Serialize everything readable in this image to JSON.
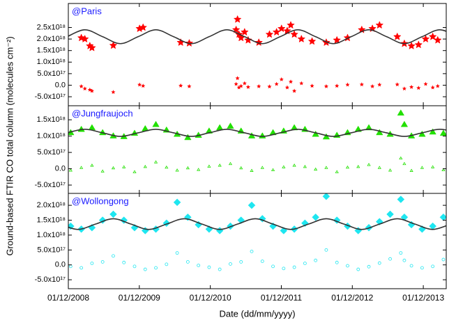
{
  "chart_data": [
    {
      "type": "scatter",
      "label": "@Paris",
      "ylabel": "Ground-based FTIR CO total column (molecules cm⁻²)",
      "ylim": [
        -8.9e+17,
        3.54e+18
      ],
      "yticks": [
        {
          "value": -5e+17,
          "label": "-5.0x10¹⁷"
        },
        {
          "value": 0,
          "label": "0.0"
        },
        {
          "value": 5e+17,
          "label": "5.0x10¹⁷"
        },
        {
          "value": 1e+18,
          "label": "1.0x10¹⁸"
        },
        {
          "value": 1.5e+18,
          "label": "1.5x10¹⁸"
        },
        {
          "value": 2e+18,
          "label": "2.0x10¹⁸"
        },
        {
          "value": 2.5e+18,
          "label": "2.5x10¹⁸"
        }
      ],
      "x": [
        2009.1,
        2009.15,
        2009.22,
        2009.25,
        2009.55,
        2009.92,
        2009.97,
        2010.5,
        2010.62,
        2011.28,
        2011.3,
        2011.32,
        2011.35,
        2011.4,
        2011.45,
        2011.6,
        2011.75,
        2011.85,
        2011.92,
        2012.0,
        2012.05,
        2012.1,
        2012.2,
        2012.35,
        2012.55,
        2012.7,
        2012.85,
        2013.05,
        2013.2,
        2013.3,
        2013.55,
        2013.65,
        2013.75,
        2013.85,
        2013.95,
        2014.05,
        2014.12
      ],
      "series": [
        {
          "color": "#ff0000",
          "marker": "star",
          "values": [
            2.05e+18,
            2e+18,
            1.7e+18,
            1.62e+18,
            1.72e+18,
            2.45e+18,
            2.5e+18,
            1.85e+18,
            1.82e+18,
            2.4e+18,
            2.85e+18,
            2.2e+18,
            2.05e+18,
            2.3e+18,
            1.95e+18,
            1.85e+18,
            2.2e+18,
            2.3e+18,
            2.45e+18,
            2.35e+18,
            2.6e+18,
            2.2e+18,
            2e+18,
            1.9e+18,
            1.85e+18,
            1.95e+18,
            2.05e+18,
            2.4e+18,
            2.45e+18,
            2.6e+18,
            2.1e+18,
            1.8e+18,
            1.7e+18,
            1.75e+18,
            2e+18,
            2.1e+18,
            1.95e+18
          ]
        },
        {
          "color": "#ff0000",
          "marker": "star",
          "values": [
            -5e+16,
            -1.5e+17,
            -2e+17,
            -2.5e+17,
            -3e+17,
            2e+16,
            -3e+16,
            -2e+16,
            -5e+16,
            5e+16,
            3e+17,
            -1e+17,
            -4e+16,
            8e+16,
            -8e+16,
            -5e+16,
            -6e+16,
            5e+16,
            2.5e+17,
            -1e+17,
            1.5e+17,
            -2.5e+17,
            8e+16,
            -3e+16,
            -5e+16,
            -3e+16,
            2e+16,
            3e+16,
            -5e+16,
            2e+16,
            3e+16,
            -1.5e+17,
            -8e+16,
            -1.2e+17,
            5e+16,
            -1e+17,
            -4e+16
          ]
        }
      ],
      "fit": {
        "color": "#333333",
        "x": [
          2008.9,
          2009.15,
          2009.4,
          2009.65,
          2009.9,
          2010.15,
          2010.4,
          2010.65,
          2010.9,
          2011.15,
          2011.4,
          2011.65,
          2011.9,
          2012.15,
          2012.4,
          2012.65,
          2012.9,
          2013.15,
          2013.4,
          2013.65,
          2013.9,
          2014.15,
          2014.4
        ],
        "values": [
          2.1e+18,
          2.4e+18,
          2.1e+18,
          1.8e+18,
          2.1e+18,
          2.4e+18,
          2.1e+18,
          1.8e+18,
          2.1e+18,
          2.4e+18,
          2.1e+18,
          1.8e+18,
          2.1e+18,
          2.4e+18,
          2.1e+18,
          1.8e+18,
          2.1e+18,
          2.4e+18,
          2.1e+18,
          1.8e+18,
          2.1e+18,
          2.4e+18,
          2.1e+18
        ]
      }
    },
    {
      "type": "scatter",
      "label": "@Jungfraujoch",
      "ylim": [
        -7.55e+17,
        1.93e+18
      ],
      "yticks": [
        {
          "value": -5e+17,
          "label": "-5.0x10¹⁷"
        },
        {
          "value": 0,
          "label": "0.0"
        },
        {
          "value": 5e+17,
          "label": "5.0x10¹⁷"
        },
        {
          "value": 1e+18,
          "label": "1.0x10¹⁸"
        },
        {
          "value": 1.5e+18,
          "label": "1.5x10¹⁸"
        }
      ],
      "x": [
        2008.95,
        2009.1,
        2009.25,
        2009.4,
        2009.55,
        2009.7,
        2009.85,
        2010.0,
        2010.15,
        2010.3,
        2010.45,
        2010.6,
        2010.75,
        2010.9,
        2011.05,
        2011.2,
        2011.35,
        2011.5,
        2011.65,
        2011.8,
        2011.95,
        2012.1,
        2012.25,
        2012.4,
        2012.55,
        2012.7,
        2012.85,
        2013.0,
        2013.15,
        2013.3,
        2013.45,
        2013.6,
        2013.65,
        2013.75,
        2013.9,
        2014.05,
        2014.2
      ],
      "series": [
        {
          "color": "#22e000",
          "marker": "triangle",
          "values": [
            1.1e+18,
            1.2e+18,
            1.25e+18,
            1.1e+18,
            1e+18,
            9.8e+17,
            1.08e+18,
            1.22e+18,
            1.35e+18,
            1.18e+18,
            1.05e+18,
            9.5e+17,
            1.02e+18,
            1.15e+18,
            1.25e+18,
            1.3e+18,
            1.15e+18,
            1e+18,
            1e+18,
            1.1e+18,
            1.15e+18,
            1.25e+18,
            1.2e+18,
            1.05e+18,
            9.7e+17,
            1.02e+18,
            1.1e+18,
            1.2e+18,
            1.25e+18,
            1.1e+18,
            1.05e+18,
            1.7e+18,
            1.35e+18,
            1e+18,
            1.05e+18,
            1.12e+18,
            1.08e+18
          ]
        },
        {
          "color": "#22e000",
          "marker": "triangle",
          "values": [
            -5e+16,
            3e+16,
            1e+17,
            -8e+16,
            2e+16,
            5e+16,
            -1e+17,
            6e+16,
            2e+17,
            4e+16,
            -5e+16,
            2e+16,
            -3e+16,
            7e+16,
            1e+17,
            1.5e+17,
            2e+16,
            -6e+16,
            3e+16,
            -4e+16,
            5e+16,
            1e+17,
            6e+16,
            -2e+16,
            3e+16,
            -1e+17,
            4e+16,
            6e+16,
            1.2e+17,
            3e+16,
            -5e+16,
            3.2e+17,
            1.5e+17,
            -6e+16,
            3e+16,
            5e+16,
            -4e+16
          ]
        }
      ],
      "fit": {
        "color": "#333333",
        "x": [
          2008.9,
          2009.15,
          2009.4,
          2009.65,
          2009.9,
          2010.15,
          2010.4,
          2010.65,
          2010.9,
          2011.15,
          2011.4,
          2011.65,
          2011.9,
          2012.15,
          2012.4,
          2012.65,
          2012.9,
          2013.15,
          2013.4,
          2013.65,
          2013.9,
          2014.15,
          2014.4
        ],
        "values": [
          1.1e+18,
          1.21e+18,
          1.1e+18,
          9.9e+17,
          1.1e+18,
          1.21e+18,
          1.1e+18,
          9.9e+17,
          1.1e+18,
          1.21e+18,
          1.1e+18,
          9.9e+17,
          1.1e+18,
          1.21e+18,
          1.1e+18,
          9.9e+17,
          1.1e+18,
          1.21e+18,
          1.1e+18,
          9.9e+17,
          1.1e+18,
          1.21e+18,
          1.1e+18
        ]
      }
    },
    {
      "type": "scatter",
      "label": "@Wollongong",
      "xlabel": "Date (dd/mm/yyyy)",
      "xlim": [
        2008.917,
        2014.24
      ],
      "xticks": [
        {
          "value": 2008.917,
          "label": "01/12/2008"
        },
        {
          "value": 2009.917,
          "label": "01/12/2009"
        },
        {
          "value": 2010.917,
          "label": "01/12/2010"
        },
        {
          "value": 2011.917,
          "label": "01/12/2011"
        },
        {
          "value": 2012.917,
          "label": "01/12/2012"
        },
        {
          "value": 2013.917,
          "label": "01/12/2013"
        }
      ],
      "ylim": [
        -8e+17,
        2.4e+18
      ],
      "yticks": [
        {
          "value": -5e+17,
          "label": "-5.0x10¹⁷"
        },
        {
          "value": 0,
          "label": "0.0"
        },
        {
          "value": 5e+17,
          "label": "5.0x10¹⁷"
        },
        {
          "value": 1e+18,
          "label": "1.0x10¹⁸"
        },
        {
          "value": 1.5e+18,
          "label": "1.5x10¹⁸"
        },
        {
          "value": 2e+18,
          "label": "2.0x10¹⁸"
        }
      ],
      "x": [
        2008.95,
        2009.1,
        2009.25,
        2009.4,
        2009.55,
        2009.7,
        2009.85,
        2010.0,
        2010.15,
        2010.3,
        2010.45,
        2010.6,
        2010.75,
        2010.9,
        2011.05,
        2011.2,
        2011.35,
        2011.5,
        2011.65,
        2011.8,
        2011.95,
        2012.1,
        2012.25,
        2012.4,
        2012.55,
        2012.7,
        2012.85,
        2013.0,
        2013.15,
        2013.3,
        2013.45,
        2013.6,
        2013.65,
        2013.75,
        2013.9,
        2014.05,
        2014.2
      ],
      "series": [
        {
          "color": "#1ee6f0",
          "marker": "diamond",
          "values": [
            1.3e+18,
            1.2e+18,
            1.25e+18,
            1.5e+18,
            1.7e+18,
            1.5e+18,
            1.25e+18,
            1.15e+18,
            1.2e+18,
            1.4e+18,
            2.1e+18,
            1.6e+18,
            1.35e+18,
            1.2e+18,
            1.15e+18,
            1.3e+18,
            1.5e+18,
            2e+18,
            1.55e+18,
            1.3e+18,
            1.15e+18,
            1.2e+18,
            1.4e+18,
            1.6e+18,
            2.3e+18,
            1.5e+18,
            1.3e+18,
            1.15e+18,
            1.25e+18,
            1.45e+18,
            1.7e+18,
            2.2e+18,
            1.6e+18,
            1.35e+18,
            1.2e+18,
            1.3e+18,
            1.6e+18
          ]
        },
        {
          "color": "#1ee6f0",
          "marker": "circle",
          "values": [
            -5e+16,
            -1e+17,
            5e+16,
            1e+17,
            3e+17,
            8e+16,
            -5e+16,
            -1.5e+17,
            -1e+17,
            2e+16,
            4e+17,
            1e+17,
            -2e+16,
            -8e+16,
            -1.5e+17,
            3e+16,
            1e+17,
            4.5e+17,
            1.2e+17,
            -5e+16,
            -1.2e+17,
            -8e+16,
            5e+16,
            1.5e+17,
            5e+17,
            8e+16,
            -3e+16,
            -1.5e+17,
            -6e+16,
            6e+16,
            2e+17,
            4e+17,
            1.5e+17,
            -3e+16,
            -1e+17,
            -5e+16,
            1.8e+17
          ]
        }
      ],
      "fit": {
        "color": "#333333",
        "x": [
          2008.8,
          2009.05,
          2009.3,
          2009.55,
          2009.8,
          2010.05,
          2010.3,
          2010.55,
          2010.8,
          2011.05,
          2011.3,
          2011.55,
          2011.8,
          2012.05,
          2012.3,
          2012.55,
          2012.8,
          2013.05,
          2013.3,
          2013.55,
          2013.8,
          2014.05,
          2014.3
        ],
        "values": [
          1.37e+18,
          1.19e+18,
          1.37e+18,
          1.55e+18,
          1.37e+18,
          1.19e+18,
          1.37e+18,
          1.55e+18,
          1.37e+18,
          1.19e+18,
          1.37e+18,
          1.55e+18,
          1.37e+18,
          1.19e+18,
          1.37e+18,
          1.55e+18,
          1.37e+18,
          1.19e+18,
          1.37e+18,
          1.55e+18,
          1.37e+18,
          1.19e+18,
          1.37e+18
        ]
      }
    }
  ]
}
